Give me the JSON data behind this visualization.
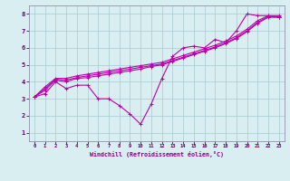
{
  "xlabel": "Windchill (Refroidissement éolien,°C)",
  "background_color": "#d8eef0",
  "grid_color": "#a8c8d0",
  "line_color": "#bb00aa",
  "xlim": [
    -0.5,
    23.5
  ],
  "ylim": [
    0.5,
    8.5
  ],
  "x_ticks": [
    0,
    1,
    2,
    3,
    4,
    5,
    6,
    7,
    8,
    9,
    10,
    11,
    12,
    13,
    14,
    15,
    16,
    17,
    18,
    19,
    20,
    21,
    22,
    23
  ],
  "y_ticks": [
    1,
    2,
    3,
    4,
    5,
    6,
    7,
    8
  ],
  "line1_x": [
    0,
    1,
    2,
    3,
    4,
    5,
    6,
    7,
    8,
    9,
    10,
    11,
    12,
    13,
    14,
    15,
    16,
    17,
    18,
    19,
    20,
    21,
    22,
    23
  ],
  "line1_y": [
    3.1,
    3.3,
    4.0,
    3.6,
    3.8,
    3.8,
    3.0,
    3.0,
    2.6,
    2.1,
    1.5,
    2.7,
    4.2,
    5.5,
    6.0,
    6.1,
    6.0,
    6.5,
    6.3,
    7.0,
    8.0,
    7.9,
    7.9,
    7.8
  ],
  "line2_x": [
    0,
    1,
    2,
    3,
    4,
    5,
    6,
    7,
    8,
    9,
    10,
    11,
    12,
    13,
    14,
    15,
    16,
    17,
    18,
    19,
    20,
    21,
    22,
    23
  ],
  "line2_y": [
    3.1,
    3.5,
    4.1,
    4.0,
    4.2,
    4.25,
    4.35,
    4.45,
    4.55,
    4.65,
    4.75,
    4.9,
    5.0,
    5.2,
    5.4,
    5.6,
    5.8,
    6.0,
    6.25,
    6.55,
    6.95,
    7.45,
    7.8,
    7.8
  ],
  "line3_x": [
    0,
    1,
    2,
    3,
    4,
    5,
    6,
    7,
    8,
    9,
    10,
    11,
    12,
    13,
    14,
    15,
    16,
    17,
    18,
    19,
    20,
    21,
    22,
    23
  ],
  "line3_y": [
    3.1,
    3.6,
    4.15,
    4.1,
    4.25,
    4.35,
    4.45,
    4.55,
    4.65,
    4.75,
    4.85,
    4.95,
    5.05,
    5.25,
    5.45,
    5.65,
    5.85,
    6.05,
    6.3,
    6.6,
    7.0,
    7.5,
    7.85,
    7.85
  ],
  "line4_x": [
    0,
    1,
    2,
    3,
    4,
    5,
    6,
    7,
    8,
    9,
    10,
    11,
    12,
    13,
    14,
    15,
    16,
    17,
    18,
    19,
    20,
    21,
    22,
    23
  ],
  "line4_y": [
    3.1,
    3.7,
    4.2,
    4.2,
    4.35,
    4.45,
    4.55,
    4.65,
    4.75,
    4.85,
    4.95,
    5.05,
    5.15,
    5.35,
    5.55,
    5.75,
    5.95,
    6.15,
    6.4,
    6.7,
    7.1,
    7.6,
    7.9,
    7.9
  ]
}
